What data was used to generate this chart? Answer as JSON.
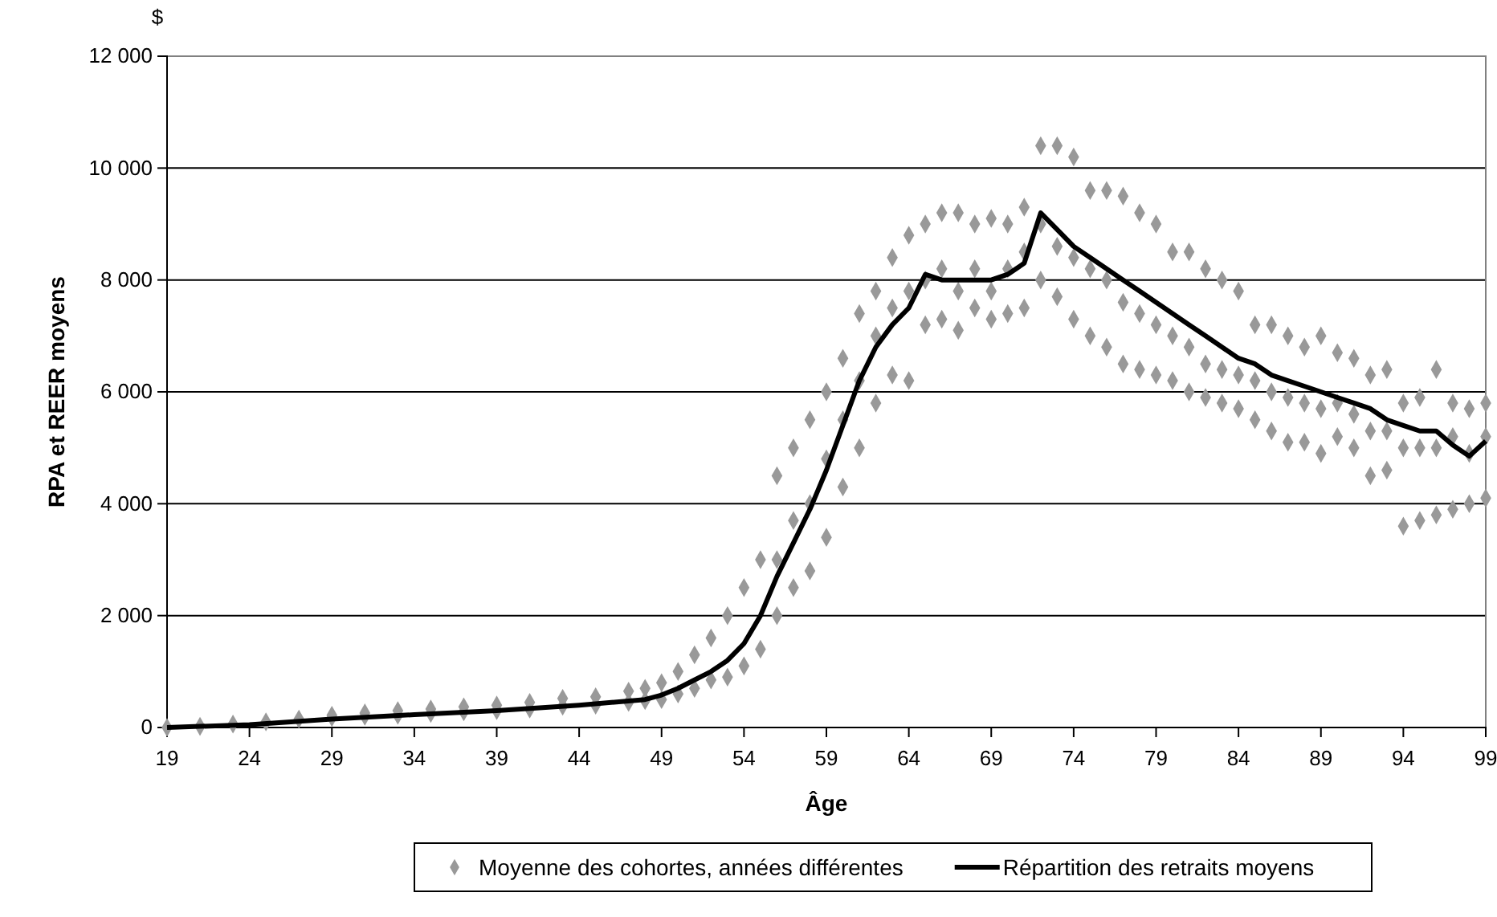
{
  "chart_data": {
    "type": "scatter",
    "xlabel": "Âge",
    "ylabel": "RPA et REER moyens",
    "annotations": [
      "$"
    ],
    "xlim": [
      19,
      99
    ],
    "xticks": [
      19,
      24,
      29,
      34,
      39,
      44,
      49,
      54,
      59,
      64,
      69,
      74,
      79,
      84,
      89,
      94,
      99
    ],
    "ylim": [
      0,
      12000
    ],
    "yticks": [
      {
        "value": 0,
        "label": "0"
      },
      {
        "value": 2000,
        "label": "2 000"
      },
      {
        "value": 4000,
        "label": "4 000"
      },
      {
        "value": 6000,
        "label": "6 000"
      },
      {
        "value": 8000,
        "label": "8 000"
      },
      {
        "value": 10000,
        "label": "10 000"
      },
      {
        "value": 12000,
        "label": "12 000"
      }
    ],
    "grid": "y",
    "legend": "bottom",
    "series": [
      {
        "name": "Moyenne des cohortes, années différentes",
        "type": "scatter",
        "marker": "diamond",
        "color": "#999999",
        "x": [
          19,
          21,
          23,
          25,
          27,
          29,
          29,
          31,
          31,
          33,
          33,
          35,
          35,
          37,
          37,
          39,
          39,
          41,
          41,
          43,
          43,
          45,
          45,
          47,
          47,
          48,
          48,
          49,
          49,
          50,
          50,
          51,
          51,
          52,
          52,
          53,
          53,
          54,
          54,
          55,
          55,
          56,
          56,
          56,
          57,
          57,
          57,
          58,
          58,
          58,
          59,
          59,
          59,
          60,
          60,
          60,
          61,
          61,
          61,
          62,
          62,
          62,
          63,
          63,
          63,
          64,
          64,
          64,
          65,
          65,
          65,
          66,
          66,
          66,
          67,
          67,
          67,
          68,
          68,
          68,
          69,
          69,
          69,
          70,
          70,
          70,
          71,
          71,
          71,
          72,
          72,
          72,
          73,
          73,
          73,
          74,
          74,
          74,
          75,
          75,
          75,
          76,
          76,
          76,
          77,
          77,
          77,
          78,
          78,
          78,
          79,
          79,
          79,
          80,
          80,
          80,
          81,
          81,
          81,
          82,
          82,
          82,
          83,
          83,
          83,
          84,
          84,
          84,
          85,
          85,
          85,
          86,
          86,
          86,
          87,
          87,
          87,
          88,
          88,
          88,
          89,
          89,
          89,
          90,
          90,
          90,
          91,
          91,
          91,
          92,
          92,
          92,
          93,
          93,
          93,
          94,
          94,
          94,
          95,
          95,
          95,
          96,
          96,
          96,
          97,
          97,
          97,
          98,
          98,
          98,
          99,
          99,
          99
        ],
        "values": [
          0,
          20,
          60,
          100,
          150,
          180,
          220,
          200,
          260,
          220,
          300,
          250,
          330,
          280,
          370,
          300,
          400,
          330,
          450,
          380,
          520,
          400,
          550,
          450,
          650,
          480,
          700,
          500,
          800,
          600,
          1000,
          700,
          1300,
          850,
          1600,
          900,
          2000,
          1100,
          2500,
          1400,
          3000,
          2000,
          3000,
          4500,
          2500,
          3700,
          5000,
          2800,
          4000,
          5500,
          3400,
          4800,
          6000,
          4300,
          5500,
          6600,
          5000,
          6200,
          7400,
          5800,
          7000,
          7800,
          6300,
          7500,
          8400,
          6200,
          7800,
          8800,
          7200,
          8000,
          9000,
          7300,
          8200,
          9200,
          7100,
          7800,
          9200,
          7500,
          8200,
          9000,
          7300,
          7800,
          9100,
          7400,
          8200,
          9000,
          7500,
          8500,
          9300,
          8000,
          9000,
          10400,
          7700,
          8600,
          10400,
          7300,
          8400,
          10200,
          7000,
          8200,
          9600,
          6800,
          8000,
          9600,
          6500,
          7600,
          9500,
          6400,
          7400,
          9200,
          6300,
          7200,
          9000,
          6200,
          7000,
          8500,
          6000,
          6800,
          8500,
          5900,
          6500,
          8200,
          5800,
          6400,
          8000,
          5700,
          6300,
          7800,
          5500,
          6200,
          7200,
          5300,
          6000,
          7200,
          5100,
          5900,
          7000,
          5100,
          5800,
          6800,
          4900,
          5700,
          7000,
          5200,
          5800,
          6700,
          5000,
          5600,
          6600,
          4500,
          5300,
          6300,
          4600,
          5300,
          6400,
          3600,
          5000,
          5800,
          3700,
          5000,
          5900,
          3800,
          5000,
          6400,
          3900,
          5200,
          5800,
          4000,
          4900,
          5700,
          4100,
          5200,
          5800
        ]
      },
      {
        "name": "Répartition des retraits moyens",
        "type": "line",
        "color": "#000000",
        "line_style": "solid",
        "x": [
          19,
          24,
          29,
          34,
          39,
          44,
          48,
          49,
          50,
          51,
          52,
          53,
          54,
          55,
          56,
          57,
          58,
          59,
          60,
          61,
          62,
          63,
          64,
          65,
          66,
          67,
          68,
          69,
          70,
          71,
          72,
          73,
          74,
          75,
          76,
          77,
          78,
          79,
          80,
          81,
          82,
          83,
          84,
          85,
          86,
          87,
          88,
          89,
          90,
          91,
          92,
          93,
          94,
          95,
          96,
          97,
          98,
          99
        ],
        "values": [
          0,
          50,
          150,
          230,
          300,
          400,
          500,
          580,
          700,
          850,
          1000,
          1200,
          1500,
          2000,
          2700,
          3300,
          3900,
          4600,
          5400,
          6200,
          6800,
          7200,
          7500,
          8100,
          8000,
          8000,
          8000,
          8000,
          8100,
          8300,
          9200,
          8900,
          8600,
          8400,
          8200,
          8000,
          7800,
          7600,
          7400,
          7200,
          7000,
          6800,
          6600,
          6500,
          6300,
          6200,
          6100,
          6000,
          5900,
          5800,
          5700,
          5500,
          5400,
          5300,
          5300,
          5050,
          4850,
          5120
        ]
      }
    ]
  }
}
